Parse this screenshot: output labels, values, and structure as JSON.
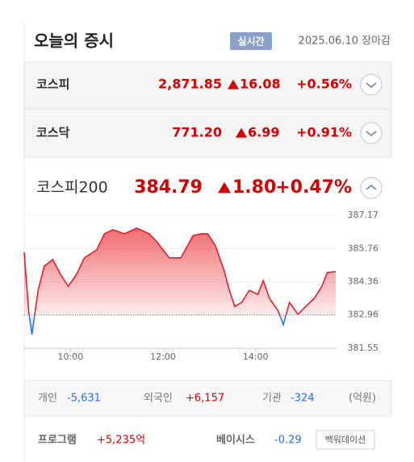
{
  "header": {
    "title": "오늘의 증시",
    "badge": "실시간",
    "date": "2025.06.10 장마감"
  },
  "indices": [
    {
      "name": "코스피",
      "value": "2,871.85",
      "change": "16.08",
      "percent": "+0.56%"
    },
    {
      "name": "코스닥",
      "value": "771.20",
      "change": "6.99",
      "percent": "+0.91%"
    },
    {
      "name": "코스피200",
      "value": "384.79",
      "change": "1.80",
      "percent": "+0.47%"
    }
  ],
  "chart_data": {
    "type": "area",
    "x": [
      540,
      546,
      550,
      558,
      566,
      577,
      587,
      597,
      608,
      618,
      634,
      644,
      655,
      670,
      686,
      702,
      712,
      728,
      743,
      759,
      770,
      778,
      788,
      799,
      806,
      813,
      822,
      832,
      843,
      850,
      858,
      869,
      876,
      884,
      895,
      905,
      916,
      926,
      933,
      944
    ],
    "values": [
      385.6,
      383.05,
      382.13,
      384.0,
      385.02,
      385.3,
      384.68,
      384.17,
      384.68,
      385.37,
      385.71,
      386.39,
      386.56,
      386.39,
      386.63,
      386.39,
      386.05,
      385.37,
      385.37,
      386.32,
      386.39,
      386.39,
      385.88,
      384.85,
      384.0,
      383.32,
      383.49,
      384.0,
      383.83,
      384.41,
      383.66,
      383.15,
      382.54,
      383.49,
      382.98,
      383.32,
      383.66,
      384.17,
      384.75,
      384.79
    ],
    "xlim": [
      540,
      945
    ],
    "xticks": [
      {
        "value": 600,
        "label": "10:00"
      },
      {
        "value": 720,
        "label": "12:00"
      },
      {
        "value": 840,
        "label": "14:00"
      }
    ],
    "ylim": [
      381.55,
      387.17
    ],
    "yticks": [
      387.17,
      385.76,
      384.36,
      382.96,
      381.55
    ],
    "baseline": 382.96,
    "color": "#e8121b",
    "down_color": "#2f6fd8",
    "grid": true
  },
  "investors": [
    {
      "name": "개인",
      "value": "-5,631"
    },
    {
      "name": "외국인",
      "value": "+6,157"
    },
    {
      "name": "기관",
      "value": "-324"
    }
  ],
  "unit": "(억원)",
  "program": {
    "label": "프로그램",
    "value": "+5,235억"
  },
  "basis": {
    "label": "베이시스",
    "value": "-0.29",
    "state": "백워데이션"
  }
}
